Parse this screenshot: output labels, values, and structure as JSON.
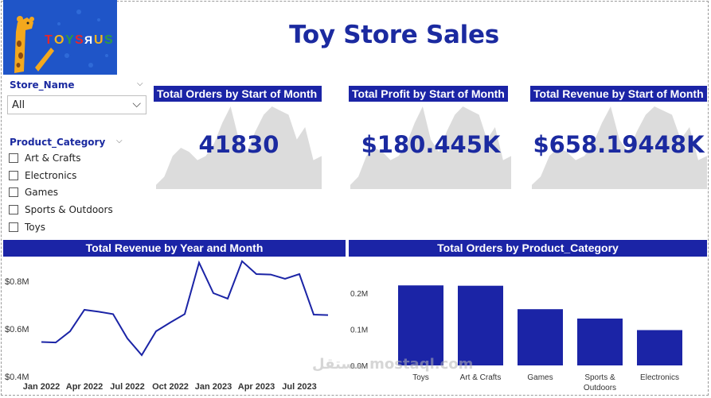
{
  "title": "Toy Store Sales",
  "logo": {
    "text": "TOYS\"R\"US",
    "icon": "giraffe-logo-icon"
  },
  "colors": {
    "primary": "#1b24a6",
    "title": "#1b2aa0",
    "spark": "#dcdcdc",
    "logo_bg": "#1f55c8"
  },
  "slicers": {
    "store": {
      "label": "Store_Name",
      "selected": "All"
    },
    "category": {
      "label": "Product_Category",
      "items": [
        "Art & Crafts",
        "Electronics",
        "Games",
        "Sports & Outdoors",
        "Toys"
      ]
    }
  },
  "cards": [
    {
      "title": "Total Orders by Start of Month",
      "value": "41830"
    },
    {
      "title": "Total Profit by Start of Month",
      "value": "$180.445K"
    },
    {
      "title": "Total Revenue by Start of Month",
      "value": "$658.19448K"
    }
  ],
  "line_section": {
    "title": "Total Revenue by Year and Month"
  },
  "bar_section": {
    "title": "Total Orders by Product_Category"
  },
  "watermark": "مستقل mostaql.com",
  "chart_data": [
    {
      "type": "line",
      "title": "Total Revenue by Year and Month",
      "x_tick_labels": [
        "Jan 2022",
        "Apr 2022",
        "Jul 2022",
        "Oct 2022",
        "Jan 2023",
        "Apr 2023",
        "Jul 2023"
      ],
      "y_tick_labels": [
        "$0.4M",
        "$0.6M",
        "$0.8M"
      ],
      "ylim": [
        0.4,
        0.9
      ],
      "x": [
        "2022-01",
        "2022-02",
        "2022-03",
        "2022-04",
        "2022-05",
        "2022-06",
        "2022-07",
        "2022-08",
        "2022-09",
        "2022-10",
        "2022-11",
        "2022-12",
        "2023-01",
        "2023-02",
        "2023-03",
        "2023-04",
        "2023-05",
        "2023-06",
        "2023-07",
        "2023-08",
        "2023-09"
      ],
      "series": [
        {
          "values": [
            0.545,
            0.543,
            0.59,
            0.68,
            0.672,
            0.662,
            0.56,
            0.49,
            0.59,
            0.627,
            0.662,
            0.878,
            0.75,
            0.727,
            0.884,
            0.83,
            0.828,
            0.81,
            0.83,
            0.66,
            0.658
          ]
        }
      ],
      "grid": false
    },
    {
      "type": "bar",
      "title": "Total Orders by Product_Category",
      "categories": [
        "Toys",
        "Art & Crafts",
        "Games",
        "Sports & Outdoors",
        "Electronics"
      ],
      "values": [
        0.222,
        0.221,
        0.156,
        0.13,
        0.098
      ],
      "y_tick_labels": [
        "0.0M",
        "0.1M",
        "0.2M"
      ],
      "ylim": [
        0,
        0.26
      ],
      "grid": false
    },
    {
      "type": "area",
      "title": "Total Orders by Start of Month",
      "values": [
        0.05,
        0.15,
        0.4,
        0.5,
        0.45,
        0.35,
        0.4,
        0.55,
        0.8,
        1.0,
        0.6,
        0.45,
        0.7,
        0.9,
        1.0,
        0.95,
        0.9,
        0.6,
        0.75,
        0.35,
        0.4
      ]
    }
  ]
}
